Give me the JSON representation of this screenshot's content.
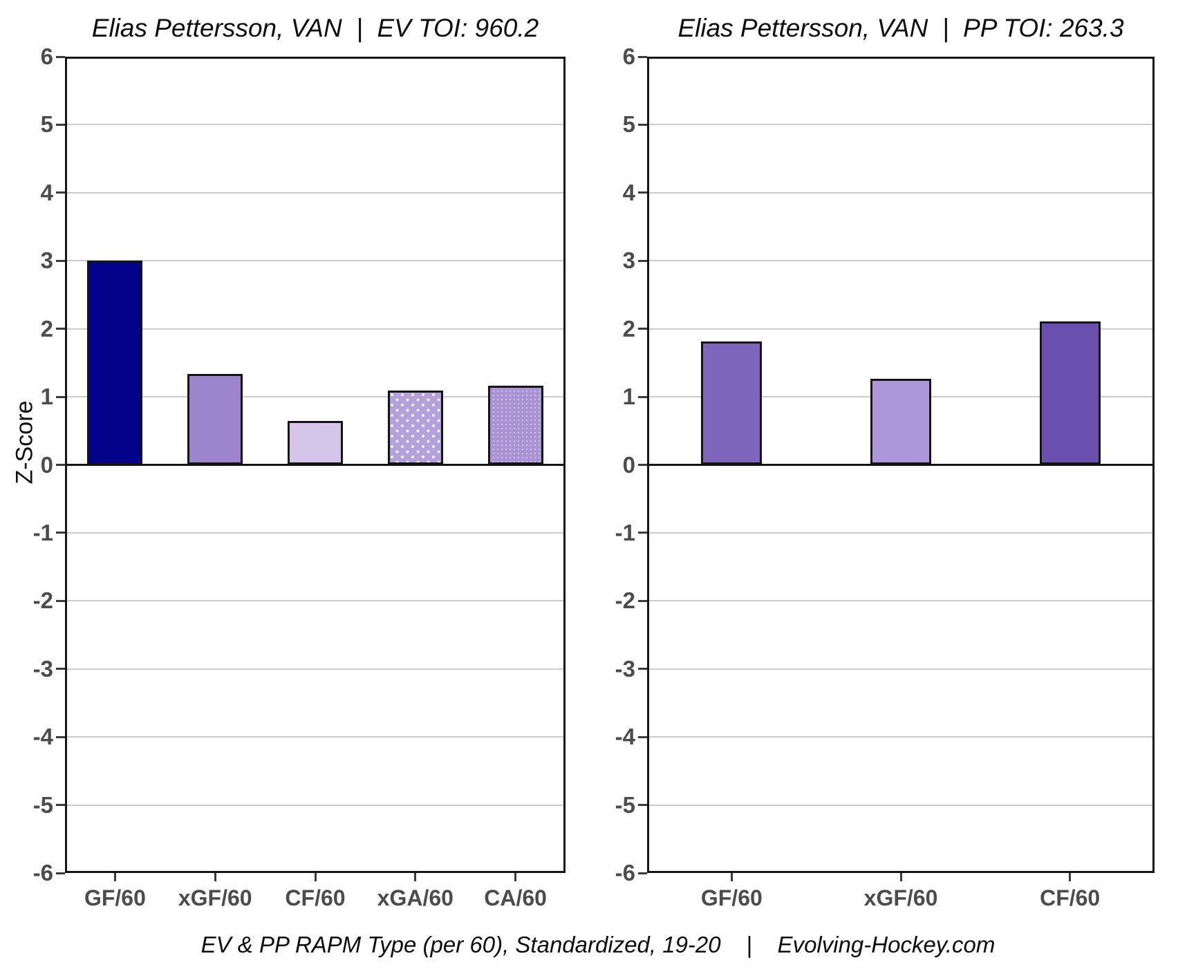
{
  "y_axis": {
    "label": "Z-Score",
    "min": -6,
    "max": 6,
    "tick_values": [
      6,
      5,
      4,
      3,
      2,
      1,
      0,
      -1,
      -2,
      -3,
      -4,
      -5,
      -6
    ]
  },
  "caption": "EV & PP RAPM Type (per 60), Standardized, 19-20    |    Evolving-Hockey.com",
  "chart_data": [
    {
      "type": "bar",
      "title": "Elias Pettersson, VAN  |  EV TOI: 960.2",
      "player": "Elias Pettersson",
      "team": "VAN",
      "strength": "EV",
      "toi": 960.2,
      "categories": [
        "GF/60",
        "xGF/60",
        "CF/60",
        "xGA/60",
        "CA/60"
      ],
      "values": [
        3.0,
        1.34,
        0.65,
        1.09,
        1.16
      ],
      "bar_colors": [
        "#02028b",
        "#9c85cc",
        "#d4c6e9",
        "#b3a1dc",
        "#a993d3"
      ],
      "bar_patterns": [
        "solid",
        "solid",
        "solid",
        "dots",
        "fine-dots"
      ],
      "xlabel": "",
      "ylabel": "Z-Score",
      "ylim": [
        -6,
        6
      ],
      "grid": true,
      "legend": "none"
    },
    {
      "type": "bar",
      "title": "Elias Pettersson, VAN  |  PP TOI: 263.3",
      "player": "Elias Pettersson",
      "team": "VAN",
      "strength": "PP",
      "toi": 263.3,
      "categories": [
        "GF/60",
        "xGF/60",
        "CF/60"
      ],
      "values": [
        1.81,
        1.26,
        2.11
      ],
      "bar_colors": [
        "#7e66bc",
        "#ae97d9",
        "#6950ae"
      ],
      "bar_patterns": [
        "solid",
        "solid",
        "solid"
      ],
      "xlabel": "",
      "ylabel": "Z-Score",
      "ylim": [
        -6,
        6
      ],
      "grid": true,
      "legend": "none"
    }
  ]
}
